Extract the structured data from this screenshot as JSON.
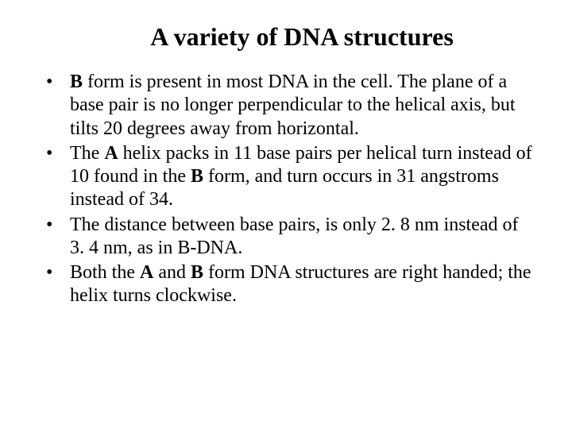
{
  "title": "A variety of DNA structures",
  "bullets": [
    {
      "segments": [
        {
          "text": "B",
          "bold": true
        },
        {
          "text": " form is present in most DNA in the cell. The plane of a base pair is no longer perpendicular to the helical axis, but tilts 20 degrees away from horizontal.",
          "bold": false
        }
      ]
    },
    {
      "segments": [
        {
          "text": "The ",
          "bold": false
        },
        {
          "text": "A",
          "bold": true
        },
        {
          "text": " helix packs in 11 base pairs per helical turn instead of 10 found in the ",
          "bold": false
        },
        {
          "text": "B",
          "bold": true
        },
        {
          "text": " form, and turn occurs in 31 angstroms instead of 34.",
          "bold": false
        }
      ]
    },
    {
      "segments": [
        {
          "text": "The distance between base pairs, is only 2. 8 nm instead of 3. 4 nm, as in B-DNA.",
          "bold": false
        }
      ]
    },
    {
      "segments": [
        {
          "text": " Both the ",
          "bold": false
        },
        {
          "text": "A",
          "bold": true
        },
        {
          "text": " and ",
          "bold": false
        },
        {
          "text": "B",
          "bold": true
        },
        {
          "text": " form DNA structures are right handed; the helix turns clockwise.",
          "bold": false
        }
      ]
    }
  ]
}
